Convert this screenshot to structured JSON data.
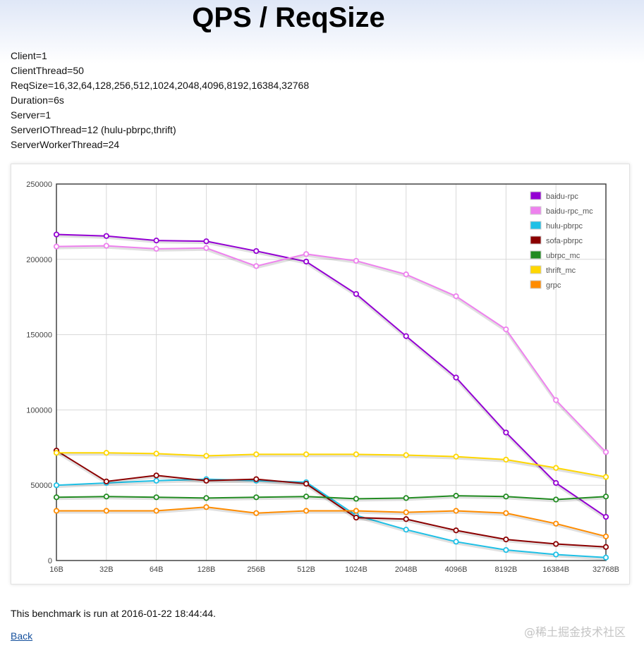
{
  "page": {
    "title": "QPS / ReqSize",
    "params": [
      "Client=1",
      "ClientThread=50",
      "ReqSize=16,32,64,128,256,512,1024,2048,4096,8192,16384,32768",
      "Duration=6s",
      "Server=1",
      "ServerIOThread=12 (hulu-pbrpc,thrift)",
      "ServerWorkerThread=24"
    ],
    "footer_note": "This benchmark is run at 2016-01-22 18:44:44.",
    "back_link": "Back",
    "watermark": "@稀土掘金技术社区"
  },
  "chart_data": {
    "type": "line",
    "categories": [
      "16B",
      "32B",
      "64B",
      "128B",
      "256B",
      "512B",
      "1024B",
      "2048B",
      "4096B",
      "8192B",
      "16384B",
      "32768B"
    ],
    "ylim": [
      0,
      250000
    ],
    "yticks": [
      0,
      50000,
      100000,
      150000,
      200000,
      250000
    ],
    "grid": true,
    "legend_position": "top-right",
    "series": [
      {
        "name": "baidu-rpc",
        "color": "#9400d3",
        "values": [
          216500,
          215500,
          212500,
          212000,
          205500,
          198500,
          177000,
          149000,
          121500,
          85000,
          51500,
          29000
        ]
      },
      {
        "name": "baidu-rpc_mc",
        "color": "#ee82ee",
        "values": [
          208500,
          209000,
          207000,
          207500,
          195500,
          203500,
          199000,
          190000,
          175500,
          153500,
          106500,
          72000
        ]
      },
      {
        "name": "hulu-pbrpc",
        "color": "#1ec0e6",
        "values": [
          50000,
          51500,
          53000,
          54000,
          53000,
          52000,
          30000,
          20500,
          12500,
          7000,
          4000,
          2000
        ]
      },
      {
        "name": "sofa-pbrpc",
        "color": "#8b0000",
        "values": [
          73000,
          52500,
          56500,
          53000,
          54000,
          51000,
          28500,
          27500,
          20000,
          14000,
          11000,
          9000
        ]
      },
      {
        "name": "ubrpc_mc",
        "color": "#228b22",
        "values": [
          42000,
          42500,
          42000,
          41500,
          42000,
          42500,
          41000,
          41500,
          43000,
          42500,
          40500,
          42500
        ]
      },
      {
        "name": "thrift_mc",
        "color": "#ffd700",
        "values": [
          71500,
          71500,
          71000,
          69500,
          70500,
          70500,
          70500,
          70000,
          69000,
          67000,
          61500,
          55500
        ]
      },
      {
        "name": "grpc",
        "color": "#ff8c00",
        "values": [
          33000,
          33000,
          33000,
          35500,
          31500,
          33000,
          33000,
          32000,
          33000,
          31500,
          24500,
          16000
        ]
      }
    ]
  }
}
